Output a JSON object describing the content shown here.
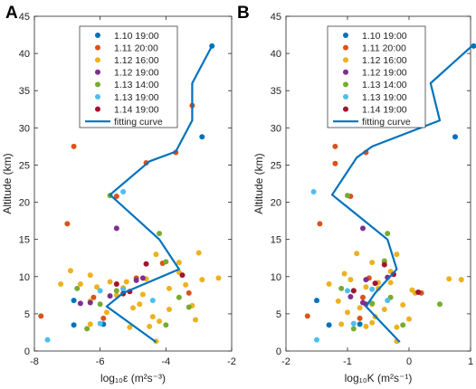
{
  "legend_entries": [
    "1.10 19:00",
    "1.11 20:00",
    "1.12 16:00",
    "1.12 19:00",
    "1.13 14:00",
    "1.13 19:00",
    "1.14 19:00",
    "fitting curve"
  ],
  "series_colors": [
    "#0072BD",
    "#D95319",
    "#EDB120",
    "#7E2F8E",
    "#77AC30",
    "#4DBEEE",
    "#A2142F"
  ],
  "curve_color": "#0072BD",
  "chart_data": [
    {
      "type": "scatter",
      "panel": "A",
      "xlabel": "log₁₀ε (m²s⁻³)",
      "ylabel": "Altitude (km)",
      "xlim": [
        -8,
        -2
      ],
      "ylim": [
        0,
        45
      ],
      "xticks": [
        "-8",
        "-6",
        "-4",
        "-2"
      ],
      "yticks": [
        "0",
        "5",
        "10",
        "15",
        "20",
        "25",
        "30",
        "35",
        "40",
        "45"
      ],
      "legend_position": "top-center",
      "series": [
        {
          "name": "1.10 19:00",
          "points": [
            [
              -2.6,
              41
            ],
            [
              -2.9,
              28.8
            ],
            [
              -6.8,
              6.8
            ],
            [
              -6.8,
              3.5
            ],
            [
              -5.9,
              3.6
            ]
          ]
        },
        {
          "name": "1.11 20:00",
          "points": [
            [
              -3.2,
              33
            ],
            [
              -3.7,
              26.7
            ],
            [
              -4.6,
              25.3
            ],
            [
              -6.8,
              27.5
            ],
            [
              -5.5,
              20.8
            ],
            [
              -7.0,
              17.1
            ],
            [
              -7.8,
              4.7
            ],
            [
              -3.3,
              7.8
            ],
            [
              -4.9,
              9.8
            ],
            [
              -6.2,
              7.2
            ],
            [
              -5.9,
              4.4
            ],
            [
              -4.1,
              11.8
            ]
          ]
        },
        {
          "name": "1.12 16:00",
          "points": [
            [
              -3.0,
              13.2
            ],
            [
              -3.6,
              11.9
            ],
            [
              -4.3,
              13
            ],
            [
              -4.6,
              9.7
            ],
            [
              -3.9,
              8.4
            ],
            [
              -5.3,
              8.5
            ],
            [
              -5.7,
              9.3
            ],
            [
              -6.3,
              10.2
            ],
            [
              -6.9,
              10.8
            ],
            [
              -6.1,
              8.6
            ],
            [
              -5.5,
              7.5
            ],
            [
              -4.7,
              7.6
            ],
            [
              -3.4,
              8.9
            ],
            [
              -2.4,
              9.8
            ],
            [
              -3.2,
              6.1
            ],
            [
              -3.9,
              5.6
            ],
            [
              -4.4,
              4.6
            ],
            [
              -5.0,
              5.8
            ],
            [
              -5.8,
              5.2
            ],
            [
              -6.3,
              6.7
            ],
            [
              -6.6,
              9.0
            ],
            [
              -4.2,
              4.0
            ],
            [
              -3.1,
              4.2
            ],
            [
              -5.1,
              3.2
            ],
            [
              -4.5,
              3.3
            ],
            [
              -6.3,
              3.6
            ],
            [
              -4.3,
              1.3
            ],
            [
              -3.6,
              10.6
            ],
            [
              -4.8,
              6.3
            ],
            [
              -2.9,
              9.6
            ],
            [
              -5.2,
              9.3
            ],
            [
              -7.2,
              9.0
            ]
          ]
        },
        {
          "name": "1.12 19:00",
          "points": [
            [
              -5.5,
              16.5
            ],
            [
              -4.9,
              9.5
            ],
            [
              -5.7,
              7.4
            ],
            [
              -6.3,
              6.5
            ],
            [
              -6.6,
              6.4
            ],
            [
              -4.7,
              9.8
            ]
          ]
        },
        {
          "name": "1.13 14:00",
          "points": [
            [
              -4.2,
              15.8
            ],
            [
              -5.7,
              20.9
            ],
            [
              -6.7,
              8.4
            ],
            [
              -5.5,
              8.1
            ],
            [
              -3.3,
              5.9
            ],
            [
              -4.0,
              3.5
            ],
            [
              -6.4,
              3.0
            ],
            [
              -3.6,
              7.2
            ],
            [
              -6.0,
              6.3
            ],
            [
              -4.0,
              12.0
            ]
          ]
        },
        {
          "name": "1.13 19:00",
          "points": [
            [
              -5.3,
              21.4
            ],
            [
              -7.6,
              1.5
            ],
            [
              -6.0,
              3.7
            ],
            [
              -5.3,
              8.3
            ],
            [
              -4.4,
              6.8
            ],
            [
              -6.0,
              8.1
            ]
          ]
        },
        {
          "name": "1.14 19:00",
          "points": [
            [
              -3.5,
              10.2
            ],
            [
              -5.1,
              8.0
            ],
            [
              -5.5,
              9.0
            ],
            [
              -4.6,
              11.7
            ],
            [
              -5.3,
              7.7
            ]
          ]
        }
      ],
      "fitting_curve": [
        [
          -4.3,
          1.2
        ],
        [
          -5.8,
          6
        ],
        [
          -5.3,
          7.8
        ],
        [
          -3.6,
          11
        ],
        [
          -4.2,
          15
        ],
        [
          -5.7,
          21
        ],
        [
          -4.5,
          25.5
        ],
        [
          -3.7,
          26.8
        ],
        [
          -3.2,
          31
        ],
        [
          -3.2,
          36
        ],
        [
          -2.6,
          41
        ]
      ]
    },
    {
      "type": "scatter",
      "panel": "B",
      "xlabel": "log₁₀K (m²s⁻¹)",
      "ylabel": "Altitude (km)",
      "xlim": [
        -2,
        1
      ],
      "ylim": [
        0,
        45
      ],
      "xticks": [
        "-2",
        "-1",
        "0",
        "1"
      ],
      "yticks": [
        "0",
        "5",
        "10",
        "15",
        "20",
        "25",
        "30",
        "35",
        "40",
        "45"
      ],
      "legend_position": "top-center",
      "series": [
        {
          "name": "1.10 19:00",
          "points": [
            [
              1.05,
              41
            ],
            [
              0.75,
              28.8
            ],
            [
              -1.5,
              6.8
            ],
            [
              -1.3,
              3.5
            ],
            [
              -0.8,
              3.6
            ]
          ]
        },
        {
          "name": "1.11 20:00",
          "points": [
            [
              0.05,
              33
            ],
            [
              -0.7,
              26.7
            ],
            [
              -1.2,
              25.2
            ],
            [
              -1.2,
              27.5
            ],
            [
              -0.95,
              20.8
            ],
            [
              -1.45,
              17.1
            ],
            [
              -1.65,
              4.7
            ],
            [
              -0.4,
              12
            ],
            [
              -0.65,
              9.8
            ],
            [
              -0.75,
              7.2
            ],
            [
              -0.8,
              4.4
            ],
            [
              0.2,
              7.8
            ]
          ]
        },
        {
          "name": "1.12 16:00",
          "points": [
            [
              -0.2,
              13
            ],
            [
              -0.6,
              11.9
            ],
            [
              -0.85,
              13.1
            ],
            [
              -0.95,
              9.6
            ],
            [
              -1.05,
              10.4
            ],
            [
              -0.7,
              8.6
            ],
            [
              -0.5,
              8.4
            ],
            [
              -0.3,
              9.2
            ],
            [
              0.05,
              8.2
            ],
            [
              0.1,
              7.8
            ],
            [
              0.85,
              9.6
            ],
            [
              -0.1,
              6.2
            ],
            [
              -0.4,
              5.6
            ],
            [
              -0.55,
              4.6
            ],
            [
              -0.8,
              5.8
            ],
            [
              -1.0,
              5.2
            ],
            [
              -1.15,
              6.7
            ],
            [
              -0.6,
              3.8
            ],
            [
              0.0,
              4.3
            ],
            [
              -0.2,
              3.2
            ],
            [
              -0.7,
              3.3
            ],
            [
              -1.1,
              3.6
            ],
            [
              -0.2,
              1.3
            ],
            [
              -0.3,
              10.7
            ],
            [
              -0.6,
              6.3
            ],
            [
              0.65,
              9.7
            ],
            [
              -0.5,
              9.2
            ],
            [
              -1.3,
              9.0
            ]
          ]
        },
        {
          "name": "1.12 19:00",
          "points": [
            [
              -0.75,
              16.5
            ],
            [
              -0.7,
              9.6
            ],
            [
              -0.95,
              7.3
            ],
            [
              -0.75,
              6.5
            ],
            [
              -0.7,
              6.3
            ],
            [
              -0.35,
              9.9
            ]
          ]
        },
        {
          "name": "1.13 14:00",
          "points": [
            [
              -0.35,
              15.8
            ],
            [
              -1.0,
              20.9
            ],
            [
              -1.1,
              8.4
            ],
            [
              -0.9,
              8.1
            ],
            [
              0.5,
              6.3
            ],
            [
              -0.1,
              3.5
            ],
            [
              -0.9,
              3.0
            ],
            [
              -0.3,
              7.2
            ],
            [
              -0.6,
              6.4
            ],
            [
              -0.4,
              12.1
            ]
          ]
        },
        {
          "name": "1.13 19:00",
          "points": [
            [
              -1.55,
              21.4
            ],
            [
              -1.5,
              1.5
            ],
            [
              -0.9,
              3.7
            ],
            [
              -0.6,
              8.3
            ],
            [
              -0.35,
              6.8
            ],
            [
              -1.0,
              8.1
            ]
          ]
        },
        {
          "name": "1.14 19:00",
          "points": [
            [
              -0.25,
              10.3
            ],
            [
              -0.9,
              8.1
            ],
            [
              -0.55,
              9.1
            ],
            [
              -0.4,
              11.6
            ],
            [
              0.15,
              7.9
            ]
          ]
        }
      ],
      "fitting_curve": [
        [
          -0.15,
          1.2
        ],
        [
          -0.7,
          6
        ],
        [
          -0.55,
          7.8
        ],
        [
          -0.2,
          11
        ],
        [
          -0.35,
          15
        ],
        [
          -1.25,
          21
        ],
        [
          -0.85,
          26
        ],
        [
          -0.6,
          27.5
        ],
        [
          0.5,
          31
        ],
        [
          0.35,
          36
        ],
        [
          1.02,
          41
        ]
      ]
    }
  ]
}
